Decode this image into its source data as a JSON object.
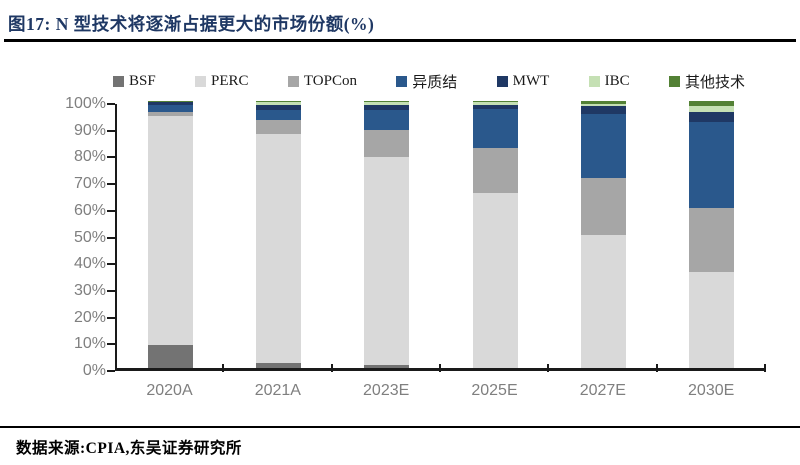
{
  "figure": {
    "title": "图17:  N 型技术将逐渐占据更大的市场份额(%)",
    "source": "数据来源:CPIA,东吴证券研究所"
  },
  "chart_data": {
    "type": "bar",
    "stacked": true,
    "title": "N 型技术将逐渐占据更大的市场份额(%)",
    "xlabel": "",
    "ylabel": "",
    "ylim": [
      0,
      100
    ],
    "ytick_step": 10,
    "ytick_suffix": "%",
    "grid": false,
    "legend_position": "top",
    "categories": [
      "2020A",
      "2021A",
      "2023E",
      "2025E",
      "2027E",
      "2030E"
    ],
    "series": [
      {
        "name": "BSF",
        "color": "#737373",
        "values": [
          8.8,
          2.0,
          1.0,
          0.0,
          0.0,
          0.0
        ]
      },
      {
        "name": "PERC",
        "color": "#D9D9D9",
        "values": [
          85.7,
          85.5,
          78.0,
          65.5,
          50.0,
          36.0
        ]
      },
      {
        "name": "TOPCon",
        "color": "#A6A6A6",
        "values": [
          1.5,
          5.5,
          10.0,
          17.0,
          21.0,
          24.0
        ]
      },
      {
        "name": "异质结",
        "color": "#2A588C",
        "values": [
          2.5,
          3.5,
          7.5,
          14.5,
          24.0,
          32.0
        ]
      },
      {
        "name": "MWT",
        "color": "#1F3864",
        "values": [
          1.0,
          2.0,
          2.0,
          1.5,
          3.0,
          4.0
        ]
      },
      {
        "name": "IBC",
        "color": "#C5E0B4",
        "values": [
          0.3,
          1.0,
          1.0,
          1.0,
          1.0,
          2.0
        ]
      },
      {
        "name": "其他技术",
        "color": "#538135",
        "values": [
          0.2,
          0.5,
          0.5,
          0.5,
          1.0,
          2.0
        ]
      }
    ],
    "axis_color": "#1a1a1a",
    "tick_label_color": "#7F7F7F"
  }
}
